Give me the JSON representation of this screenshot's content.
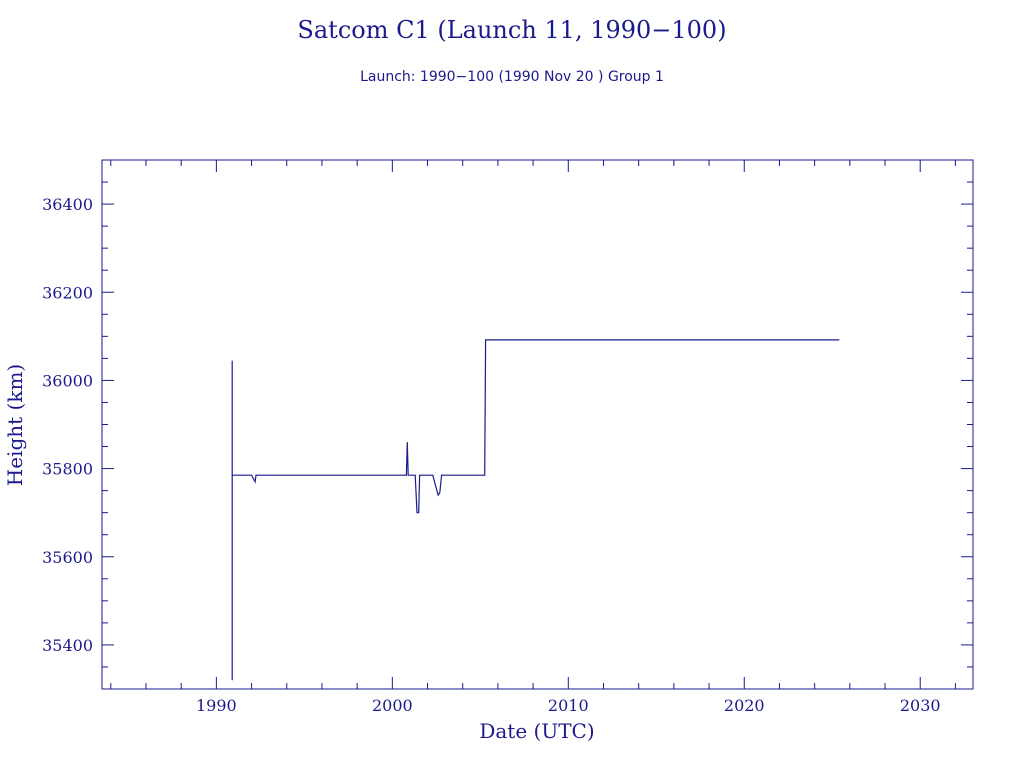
{
  "chart_data": {
    "type": "line",
    "title": "Satcom C1 (Launch 11, 1990−100)",
    "subtitle": "Launch: 1990−100  (1990 Nov 20 )  Group 1",
    "xlabel": "Date (UTC)",
    "ylabel": "Height (km)",
    "xlim": [
      1983.5,
      2033
    ],
    "ylim": [
      35300,
      36500
    ],
    "x_ticks": [
      1990,
      2000,
      2010,
      2020,
      2030
    ],
    "y_ticks": [
      35400,
      35600,
      35800,
      36000,
      36200,
      36400
    ],
    "grid": false,
    "series": [
      {
        "x": [
          1990.9,
          1990.9,
          1990.9,
          1991.0,
          1992.0,
          1992.2,
          1992.25,
          1992.3,
          1995.0,
          1998.0,
          2000.8,
          2000.85,
          2000.9,
          2000.95,
          2001.3,
          2001.4,
          2001.5,
          2001.55,
          2001.6,
          2002.0,
          2002.3,
          2002.5,
          2002.6,
          2002.7,
          2002.8,
          2002.9,
          2005.2,
          2005.25,
          2005.3,
          2005.35,
          2010.0,
          2015.0,
          2020.0,
          2025.4
        ],
        "y": [
          35320,
          36045,
          35785,
          35785,
          35785,
          35770,
          35785,
          35785,
          35785,
          35785,
          35785,
          35860,
          35785,
          35785,
          35785,
          35700,
          35700,
          35785,
          35785,
          35785,
          35785,
          35755,
          35740,
          35745,
          35785,
          35785,
          35785,
          35785,
          36092,
          36092,
          36092,
          36092,
          36092,
          36092
        ]
      }
    ]
  }
}
